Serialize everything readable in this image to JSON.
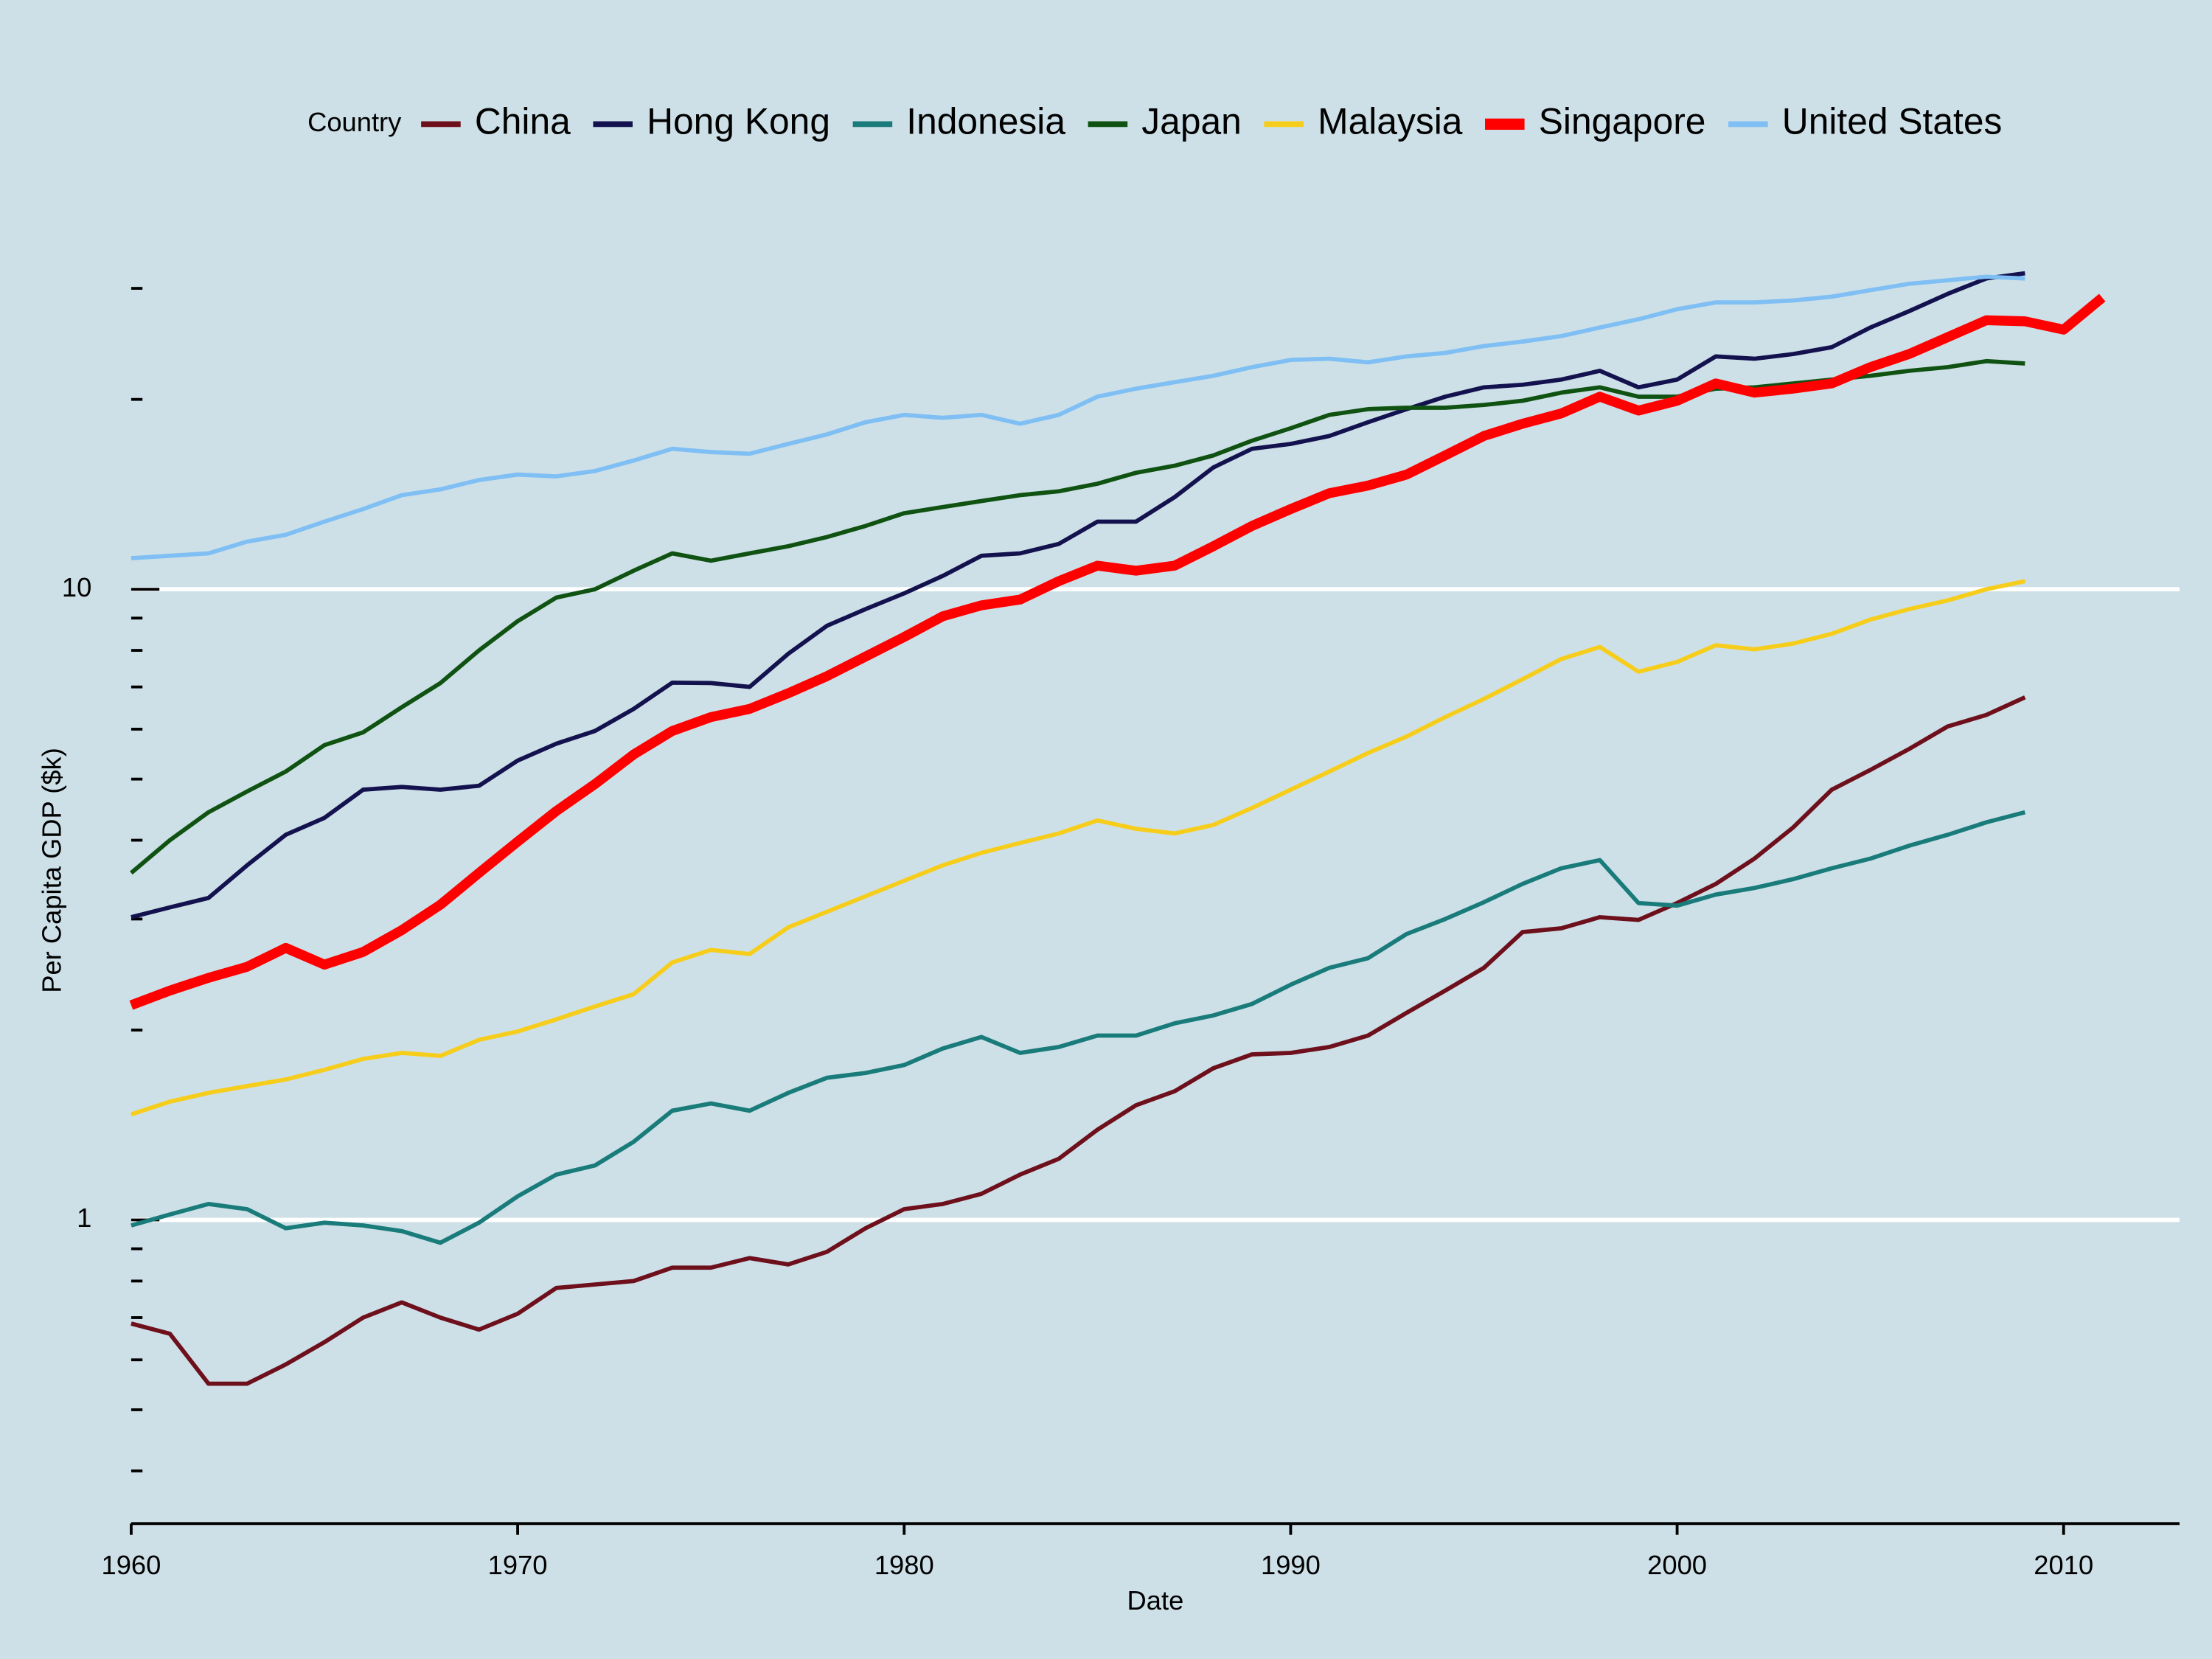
{
  "chart_data": {
    "type": "line",
    "legend_title": "Country",
    "legend_position": "top",
    "x_label": "Date",
    "y_label": "Per Capita GDP ($k)",
    "log_y": true,
    "grid": true,
    "xlim": [
      1960,
      2013
    ],
    "xticks": [
      1960,
      1970,
      1980,
      1990,
      2000,
      2010
    ],
    "ylim": [
      0.33,
      36
    ],
    "yticks": [
      1,
      10
    ],
    "y_minor_ticks": [
      0.4,
      0.5,
      0.6,
      0.7,
      0.8,
      0.9,
      2,
      3,
      4,
      5,
      6,
      7,
      8,
      9,
      20,
      30
    ],
    "x": [
      1960,
      1961,
      1962,
      1963,
      1964,
      1965,
      1966,
      1967,
      1968,
      1969,
      1970,
      1971,
      1972,
      1973,
      1974,
      1975,
      1976,
      1977,
      1978,
      1979,
      1980,
      1981,
      1982,
      1983,
      1984,
      1985,
      1986,
      1987,
      1988,
      1989,
      1990,
      1991,
      1992,
      1993,
      1994,
      1995,
      1996,
      1997,
      1998,
      1999,
      2000,
      2001,
      2002,
      2003,
      2004,
      2005,
      2006,
      2007,
      2008,
      2009,
      2010,
      2011
    ],
    "series": [
      {
        "name": "China",
        "color": "#6e0f1c",
        "line_width": 3,
        "values": [
          0.685,
          0.66,
          0.55,
          0.55,
          0.59,
          0.64,
          0.7,
          0.74,
          0.7,
          0.67,
          0.71,
          0.78,
          0.79,
          0.8,
          0.84,
          0.84,
          0.87,
          0.85,
          0.89,
          0.97,
          1.04,
          1.06,
          1.1,
          1.18,
          1.25,
          1.39,
          1.52,
          1.6,
          1.74,
          1.83,
          1.84,
          1.88,
          1.96,
          2.13,
          2.31,
          2.51,
          2.86,
          2.9,
          3.02,
          2.99,
          3.18,
          3.41,
          3.74,
          4.19,
          4.81,
          5.17,
          5.58,
          6.06,
          6.32,
          6.74,
          null,
          null
        ]
      },
      {
        "name": "Hong Kong",
        "color": "#13124f",
        "line_width": 3,
        "values": [
          3.02,
          3.13,
          3.24,
          3.65,
          4.08,
          4.34,
          4.81,
          4.86,
          4.81,
          4.88,
          5.35,
          5.69,
          5.96,
          6.46,
          7.11,
          7.1,
          7.0,
          7.9,
          8.75,
          9.3,
          9.85,
          10.5,
          11.3,
          11.4,
          11.8,
          12.8,
          12.8,
          14.0,
          15.6,
          16.7,
          17.0,
          17.5,
          18.4,
          19.3,
          20.2,
          20.9,
          21.1,
          21.5,
          22.2,
          20.9,
          21.5,
          23.4,
          23.2,
          23.6,
          24.2,
          26.0,
          27.6,
          29.4,
          31.1,
          31.7,
          null,
          null
        ]
      },
      {
        "name": "Indonesia",
        "color": "#197b7a",
        "line_width": 3,
        "values": [
          0.98,
          1.02,
          1.06,
          1.04,
          0.97,
          0.99,
          0.98,
          0.96,
          0.92,
          0.99,
          1.09,
          1.18,
          1.22,
          1.33,
          1.49,
          1.53,
          1.49,
          1.59,
          1.68,
          1.71,
          1.76,
          1.87,
          1.95,
          1.84,
          1.88,
          1.96,
          1.96,
          2.05,
          2.11,
          2.2,
          2.36,
          2.51,
          2.6,
          2.84,
          3.0,
          3.19,
          3.41,
          3.61,
          3.72,
          3.18,
          3.15,
          3.28,
          3.36,
          3.47,
          3.61,
          3.74,
          3.92,
          4.08,
          4.27,
          4.43,
          null,
          null
        ]
      },
      {
        "name": "Japan",
        "color": "#0f5212",
        "line_width": 3,
        "values": [
          3.55,
          4.0,
          4.43,
          4.78,
          5.14,
          5.66,
          5.93,
          6.5,
          7.1,
          8.0,
          8.9,
          9.7,
          10.0,
          10.7,
          11.4,
          11.1,
          11.4,
          11.7,
          12.1,
          12.6,
          13.2,
          13.5,
          13.8,
          14.1,
          14.3,
          14.7,
          15.3,
          15.7,
          16.3,
          17.2,
          18.0,
          18.9,
          19.3,
          19.4,
          19.4,
          19.6,
          19.9,
          20.5,
          20.9,
          20.2,
          20.2,
          20.8,
          20.9,
          21.2,
          21.5,
          21.8,
          22.2,
          22.5,
          23.0,
          22.8,
          null,
          null
        ]
      },
      {
        "name": "Malaysia",
        "color": "#f7cd1c",
        "line_width": 3,
        "values": [
          1.47,
          1.54,
          1.59,
          1.63,
          1.67,
          1.73,
          1.8,
          1.84,
          1.82,
          1.93,
          1.99,
          2.08,
          2.18,
          2.28,
          2.56,
          2.68,
          2.64,
          2.91,
          3.08,
          3.26,
          3.45,
          3.65,
          3.82,
          3.96,
          4.1,
          4.3,
          4.17,
          4.1,
          4.23,
          4.5,
          4.81,
          5.14,
          5.5,
          5.84,
          6.27,
          6.7,
          7.2,
          7.75,
          8.1,
          7.4,
          7.67,
          8.15,
          8.03,
          8.2,
          8.5,
          8.95,
          9.3,
          9.6,
          10.0,
          10.3,
          null,
          null
        ]
      },
      {
        "name": "Singapore",
        "color": "#ff0000",
        "line_width": 7,
        "values": [
          2.19,
          2.31,
          2.42,
          2.52,
          2.7,
          2.54,
          2.66,
          2.88,
          3.16,
          3.55,
          3.98,
          4.45,
          4.91,
          5.47,
          5.96,
          6.27,
          6.46,
          6.84,
          7.28,
          7.82,
          8.4,
          9.06,
          9.43,
          9.63,
          10.3,
          10.9,
          10.7,
          10.9,
          11.7,
          12.6,
          13.4,
          14.2,
          14.6,
          15.2,
          16.3,
          17.5,
          18.3,
          19.0,
          20.2,
          19.2,
          19.9,
          21.2,
          20.5,
          20.8,
          21.2,
          22.5,
          23.6,
          25.1,
          26.7,
          26.6,
          25.8,
          29.0
        ]
      },
      {
        "name": "United States",
        "color": "#7fbff4",
        "line_width": 3,
        "values": [
          11.2,
          11.3,
          11.4,
          11.9,
          12.2,
          12.8,
          13.4,
          14.1,
          14.4,
          14.9,
          15.2,
          15.1,
          15.4,
          16.0,
          16.7,
          16.5,
          16.4,
          17.0,
          17.6,
          18.4,
          18.9,
          18.7,
          18.9,
          18.3,
          18.9,
          20.2,
          20.8,
          21.3,
          21.8,
          22.5,
          23.1,
          23.2,
          22.9,
          23.4,
          23.7,
          24.3,
          24.7,
          25.2,
          26.0,
          26.8,
          27.8,
          28.5,
          28.5,
          28.7,
          29.1,
          29.8,
          30.5,
          30.9,
          31.3,
          31.1,
          null,
          null
        ]
      }
    ]
  }
}
